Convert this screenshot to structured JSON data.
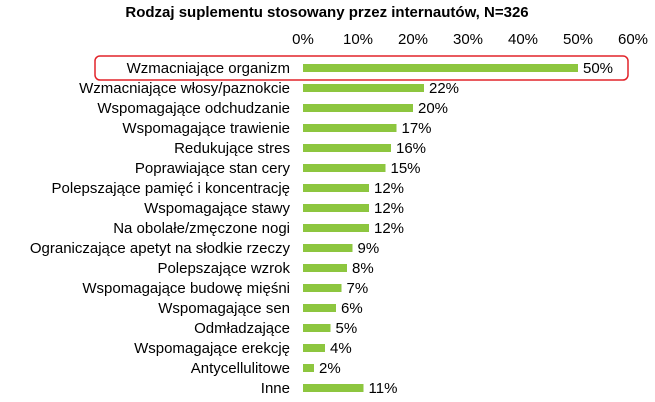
{
  "chart_data": {
    "type": "bar",
    "orientation": "horizontal",
    "title": "Rodzaj suplementu stosowany przez internautów, N=326",
    "xlabel": "",
    "ylabel": "",
    "xlim": [
      0,
      60
    ],
    "x_ticks": [
      "0%",
      "10%",
      "20%",
      "30%",
      "40%",
      "50%",
      "60%"
    ],
    "x_axis_position": "top",
    "grid": false,
    "legend": "none",
    "bar_color": "#8DC63F",
    "highlight_color": "#E2232A",
    "highlighted_category": "Wzmacniające organizm",
    "categories": [
      "Wzmacniające organizm",
      "Wzmacniające włosy/paznokcie",
      "Wspomagające odchudzanie",
      "Wspomagające trawienie",
      "Redukujące stres",
      "Poprawiające stan cery",
      "Polepszające pamięć i koncentrację",
      "Wspomagające stawy",
      "Na obolałe/zmęczone nogi",
      "Ograniczające apetyt na słodkie rzeczy",
      "Polepszające wzrok",
      "Wspomagające budowę mięśni",
      "Wspomagające sen",
      "Odmładzające",
      "Wspomagające erekcję",
      "Antycellulitowe",
      "Inne"
    ],
    "values": [
      50,
      22,
      20,
      17,
      16,
      15,
      12,
      12,
      12,
      9,
      8,
      7,
      6,
      5,
      4,
      2,
      11
    ],
    "value_labels": [
      "50%",
      "22%",
      "20%",
      "17%",
      "16%",
      "15%",
      "12%",
      "12%",
      "12%",
      "9%",
      "8%",
      "7%",
      "6%",
      "5%",
      "4%",
      "2%",
      "11%"
    ]
  }
}
